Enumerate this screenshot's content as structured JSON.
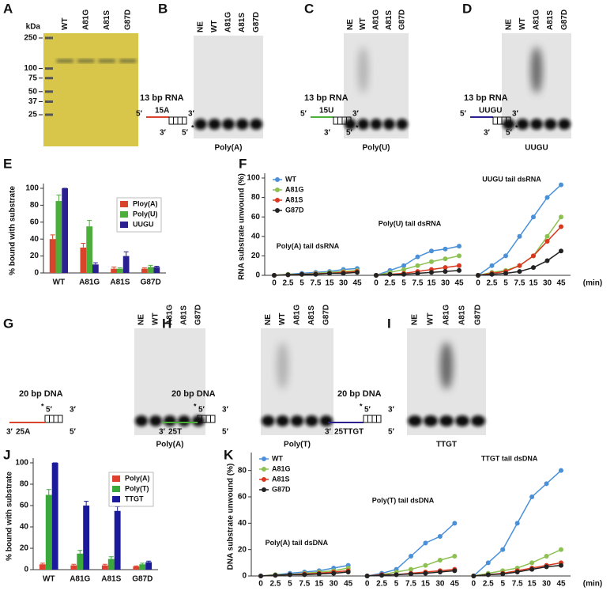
{
  "gels": [
    {
      "letter": "A",
      "unit": "kDa",
      "ladder": [
        250,
        100,
        75,
        50,
        37,
        25
      ],
      "lanes": [
        "WT",
        "A81G",
        "A81S",
        "G87D"
      ]
    },
    {
      "letter": "B",
      "lanes": [
        "NE",
        "WT",
        "A81G",
        "A81S",
        "G87D"
      ],
      "caption": "Poly(A)",
      "substrate": "13 bp RNA",
      "tail": "15A",
      "tail_color": "#d9452b",
      "ends": [
        "5′",
        "3′",
        "3′",
        "5′"
      ],
      "asterisk": "*"
    },
    {
      "letter": "C",
      "lanes": [
        "NE",
        "WT",
        "A81G",
        "A81S",
        "G87D"
      ],
      "caption": "Poly(U)",
      "substrate": "13 bp RNA",
      "tail": "15U",
      "tail_color": "#4caf3a",
      "ends": [
        "5′",
        "3′",
        "3′",
        "5′"
      ],
      "asterisk": "*"
    },
    {
      "letter": "D",
      "lanes": [
        "NE",
        "WT",
        "A81G",
        "A81S",
        "G87D"
      ],
      "caption": "UUGU",
      "substrate": "13 bp RNA",
      "tail": "UUGU",
      "tail_color": "#2b2090",
      "ends": [
        "5′",
        "3′",
        "3′",
        "5′"
      ],
      "asterisk": "*"
    },
    {
      "letter": "G",
      "lanes": [
        "NE",
        "WT",
        "A81G",
        "A81S",
        "G87D"
      ],
      "caption": "Poly(A)",
      "substrate": "20 bp DNA",
      "tail": "25A",
      "tail_color": "#d9452b",
      "ends": [
        "5′",
        "3′",
        "3′",
        "5′"
      ],
      "asterisk": "*"
    },
    {
      "letter": "H",
      "lanes": [
        "NE",
        "WT",
        "A81G",
        "A81S",
        "G87D"
      ],
      "caption": "Poly(T)",
      "substrate": "20 bp DNA",
      "tail": "25T",
      "tail_color": "#4caf3a",
      "ends": [
        "5′",
        "3′",
        "3′",
        "5′"
      ],
      "asterisk": "*"
    },
    {
      "letter": "I",
      "lanes": [
        "NE",
        "WT",
        "A81G",
        "A81S",
        "G87D"
      ],
      "caption": "TTGT",
      "substrate": "20 bp DNA",
      "tail": "25TTGT",
      "tail_color": "#2b2090",
      "ends": [
        "5′",
        "3′",
        "3′",
        "5′"
      ],
      "asterisk": "*"
    }
  ],
  "chart_data": [
    {
      "type": "bar",
      "panel": "E",
      "ylabel": "% bound with substrate",
      "categories": [
        "WT",
        "A81G",
        "A81S",
        "G87D"
      ],
      "ylim": [
        0,
        100
      ],
      "yticks": [
        0,
        20,
        40,
        60,
        80,
        100
      ],
      "legend": "upper right",
      "series": [
        {
          "name": "Ploy(A)",
          "color": "#d9452b",
          "values": [
            40,
            30,
            5,
            5
          ],
          "errors": [
            5,
            5,
            2,
            1
          ]
        },
        {
          "name": "Poly(U)",
          "color": "#4caf3a",
          "values": [
            85,
            55,
            5,
            7
          ],
          "errors": [
            7,
            7,
            1,
            2
          ]
        },
        {
          "name": "UUGU",
          "color": "#2b2090",
          "values": [
            100,
            10,
            20,
            7
          ],
          "errors": [
            0,
            2,
            5,
            1
          ]
        }
      ]
    },
    {
      "type": "line",
      "panel": "F",
      "ylabel": "RNA substrate unwound (%)",
      "xunit": "(min)",
      "categories": [
        "0",
        "2.5",
        "5",
        "7.5",
        "15",
        "30",
        "45"
      ],
      "groups": [
        "Poly(A) tail dsRNA",
        "Poly(U) tail dsRNA",
        "UUGU tail dsRNA"
      ],
      "ylim": [
        0,
        100
      ],
      "yticks": [
        0,
        20,
        40,
        60,
        80,
        100
      ],
      "legend": "upper left",
      "series": [
        {
          "name": "WT",
          "color": "#4a90d9",
          "values": [
            [
              0,
              1,
              2,
              3,
              4,
              6,
              7
            ],
            [
              0,
              5,
              10,
              19,
              25,
              27,
              30
            ],
            [
              0,
              10,
              20,
              40,
              60,
              80,
              93
            ]
          ]
        },
        {
          "name": "A81G",
          "color": "#8cc152",
          "values": [
            [
              0,
              1,
              1,
              2,
              3,
              4,
              5
            ],
            [
              0,
              3,
              6,
              10,
              14,
              17,
              20
            ],
            [
              0,
              3,
              5,
              10,
              20,
              40,
              60
            ]
          ]
        },
        {
          "name": "A81S",
          "color": "#d9381e",
          "values": [
            [
              0,
              0.5,
              1,
              1.5,
              2,
              3,
              4
            ],
            [
              0,
              1,
              2,
              4,
              6,
              8,
              10
            ],
            [
              0,
              2,
              4,
              10,
              20,
              35,
              50
            ]
          ]
        },
        {
          "name": "G87D",
          "color": "#222222",
          "values": [
            [
              0,
              0.5,
              1,
              1,
              2,
              2,
              3
            ],
            [
              0,
              1,
              1,
              2,
              3,
              4,
              5
            ],
            [
              0,
              1,
              2,
              4,
              8,
              15,
              25
            ]
          ]
        }
      ]
    },
    {
      "type": "bar",
      "panel": "J",
      "ylabel": "% bound with substrate",
      "categories": [
        "WT",
        "A81G",
        "A81S",
        "G87D"
      ],
      "ylim": [
        0,
        100
      ],
      "yticks": [
        0,
        20,
        40,
        60,
        80,
        100
      ],
      "legend": "upper right",
      "series": [
        {
          "name": "Poly(A)",
          "color": "#e04030",
          "values": [
            5,
            4,
            4,
            3
          ],
          "errors": [
            1,
            1,
            1,
            0.5
          ]
        },
        {
          "name": "Poly(T)",
          "color": "#3aa83a",
          "values": [
            70,
            15,
            10,
            5
          ],
          "errors": [
            5,
            3,
            2,
            1
          ]
        },
        {
          "name": "TTGT",
          "color": "#1a1a9a",
          "values": [
            100,
            60,
            55,
            7
          ],
          "errors": [
            0,
            4,
            4,
            1
          ]
        }
      ]
    },
    {
      "type": "line",
      "panel": "K",
      "ylabel": "DNA substrate unwound (%)",
      "xunit": "(min)",
      "categories": [
        "0",
        "2.5",
        "5",
        "7.5",
        "15",
        "30",
        "45"
      ],
      "groups": [
        "Poly(A) tail dsDNA",
        "Poly(T) tail dsDNA",
        "TTGT tail dsDNA"
      ],
      "ylim": [
        0,
        90
      ],
      "yticks": [
        0,
        20,
        40,
        60,
        80
      ],
      "legend": "upper left",
      "series": [
        {
          "name": "WT",
          "color": "#4a90d9",
          "values": [
            [
              0,
              1,
              2,
              3,
              4,
              6,
              8
            ],
            [
              0,
              2,
              5,
              15,
              25,
              30,
              40
            ],
            [
              0,
              10,
              20,
              40,
              60,
              70,
              80
            ]
          ]
        },
        {
          "name": "A81G",
          "color": "#8cc152",
          "values": [
            [
              0,
              1,
              1,
              2,
              3,
              4,
              6
            ],
            [
              0,
              1,
              3,
              5,
              8,
              12,
              15
            ],
            [
              0,
              2,
              4,
              6,
              10,
              15,
              20
            ]
          ]
        },
        {
          "name": "A81S",
          "color": "#d9381e",
          "values": [
            [
              0,
              0.5,
              1,
              1.5,
              2,
              3,
              4
            ],
            [
              0,
              1,
              1,
              2,
              3,
              4,
              5
            ],
            [
              0,
              1,
              2,
              4,
              6,
              8,
              10
            ]
          ]
        },
        {
          "name": "G87D",
          "color": "#222222",
          "values": [
            [
              0,
              0.5,
              1,
              1,
              1.5,
              2,
              3
            ],
            [
              0,
              0.5,
              1,
              1.5,
              2,
              3,
              4
            ],
            [
              0,
              1,
              1.5,
              3,
              5,
              7,
              8
            ]
          ]
        }
      ]
    }
  ]
}
